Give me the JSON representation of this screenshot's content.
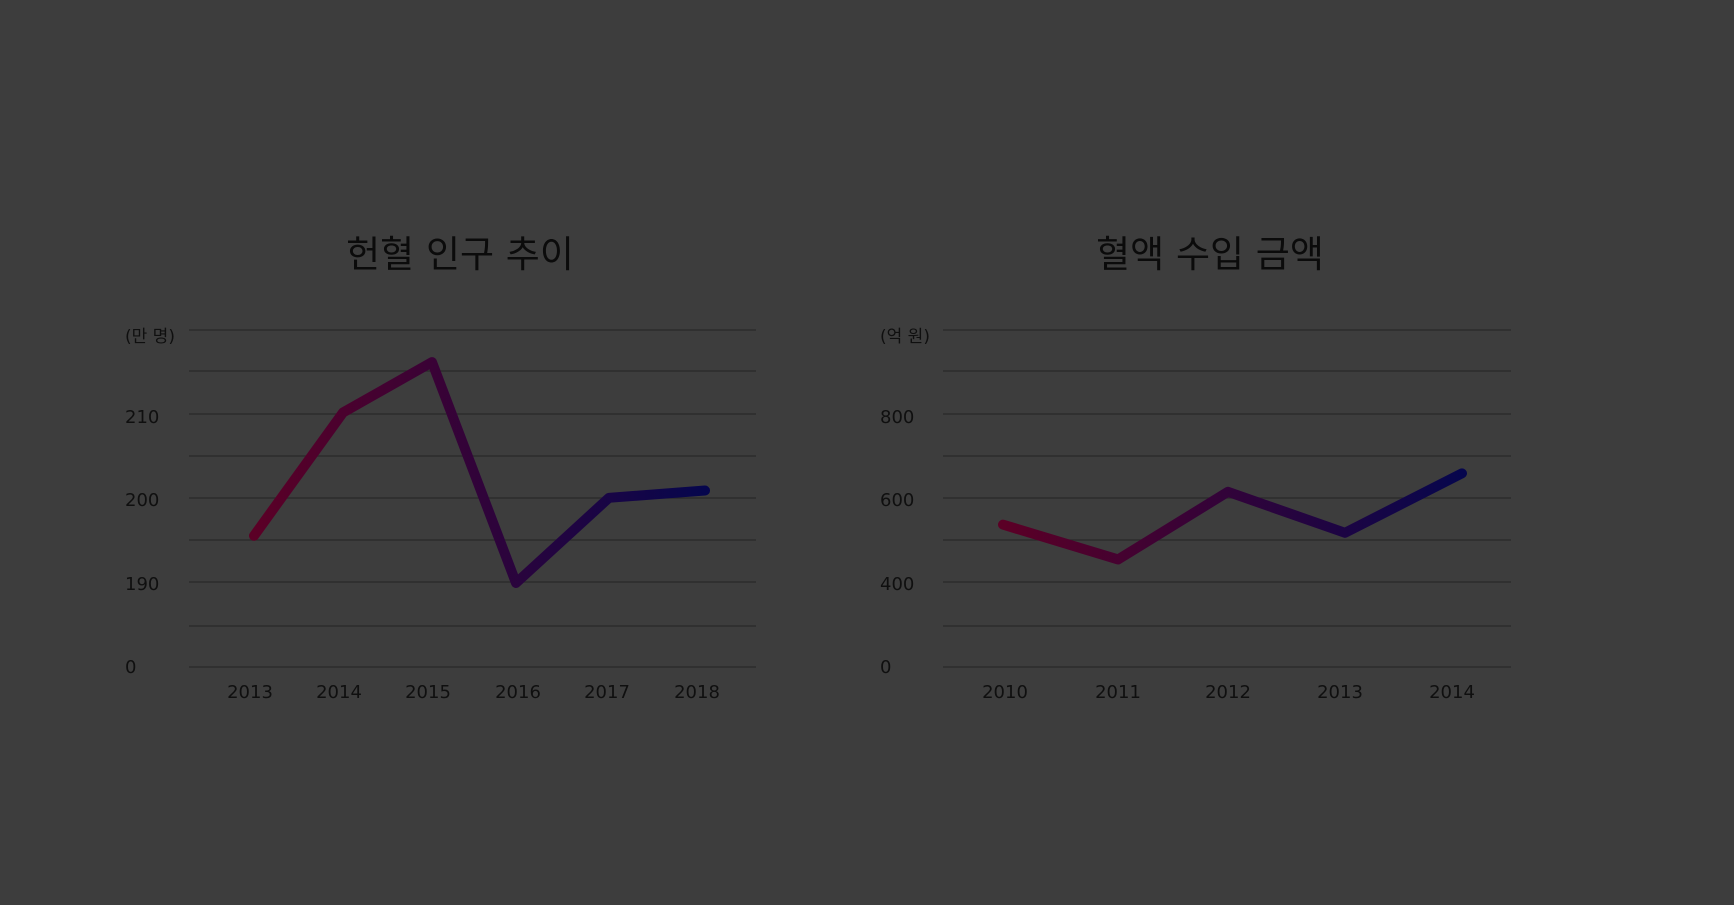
{
  "chart_data": [
    {
      "type": "line",
      "title": "헌혈 인구 추이",
      "unit_label": "(만 명)",
      "categories": [
        "2013",
        "2014",
        "2015",
        "2016",
        "2017",
        "2018"
      ],
      "values": [
        191.4,
        207.2,
        213.2,
        180.0,
        196.6,
        197.6
      ],
      "y_ticks": [
        "0",
        "190",
        "200",
        "210"
      ],
      "grid": true,
      "axis_break": true,
      "colors": {
        "start": "#5b0026",
        "end": "#06064d"
      }
    },
    {
      "type": "line",
      "title": "혈액 수입 금액",
      "unit_label": "(억 원)",
      "categories": [
        "2010",
        "2011",
        "2012",
        "2013",
        "2014"
      ],
      "values": [
        540,
        455,
        620,
        520,
        665
      ],
      "y_ticks": [
        "0",
        "400",
        "600",
        "800"
      ],
      "grid": true,
      "axis_break": true,
      "colors": {
        "start": "#5b0026",
        "end": "#06064d"
      }
    }
  ]
}
